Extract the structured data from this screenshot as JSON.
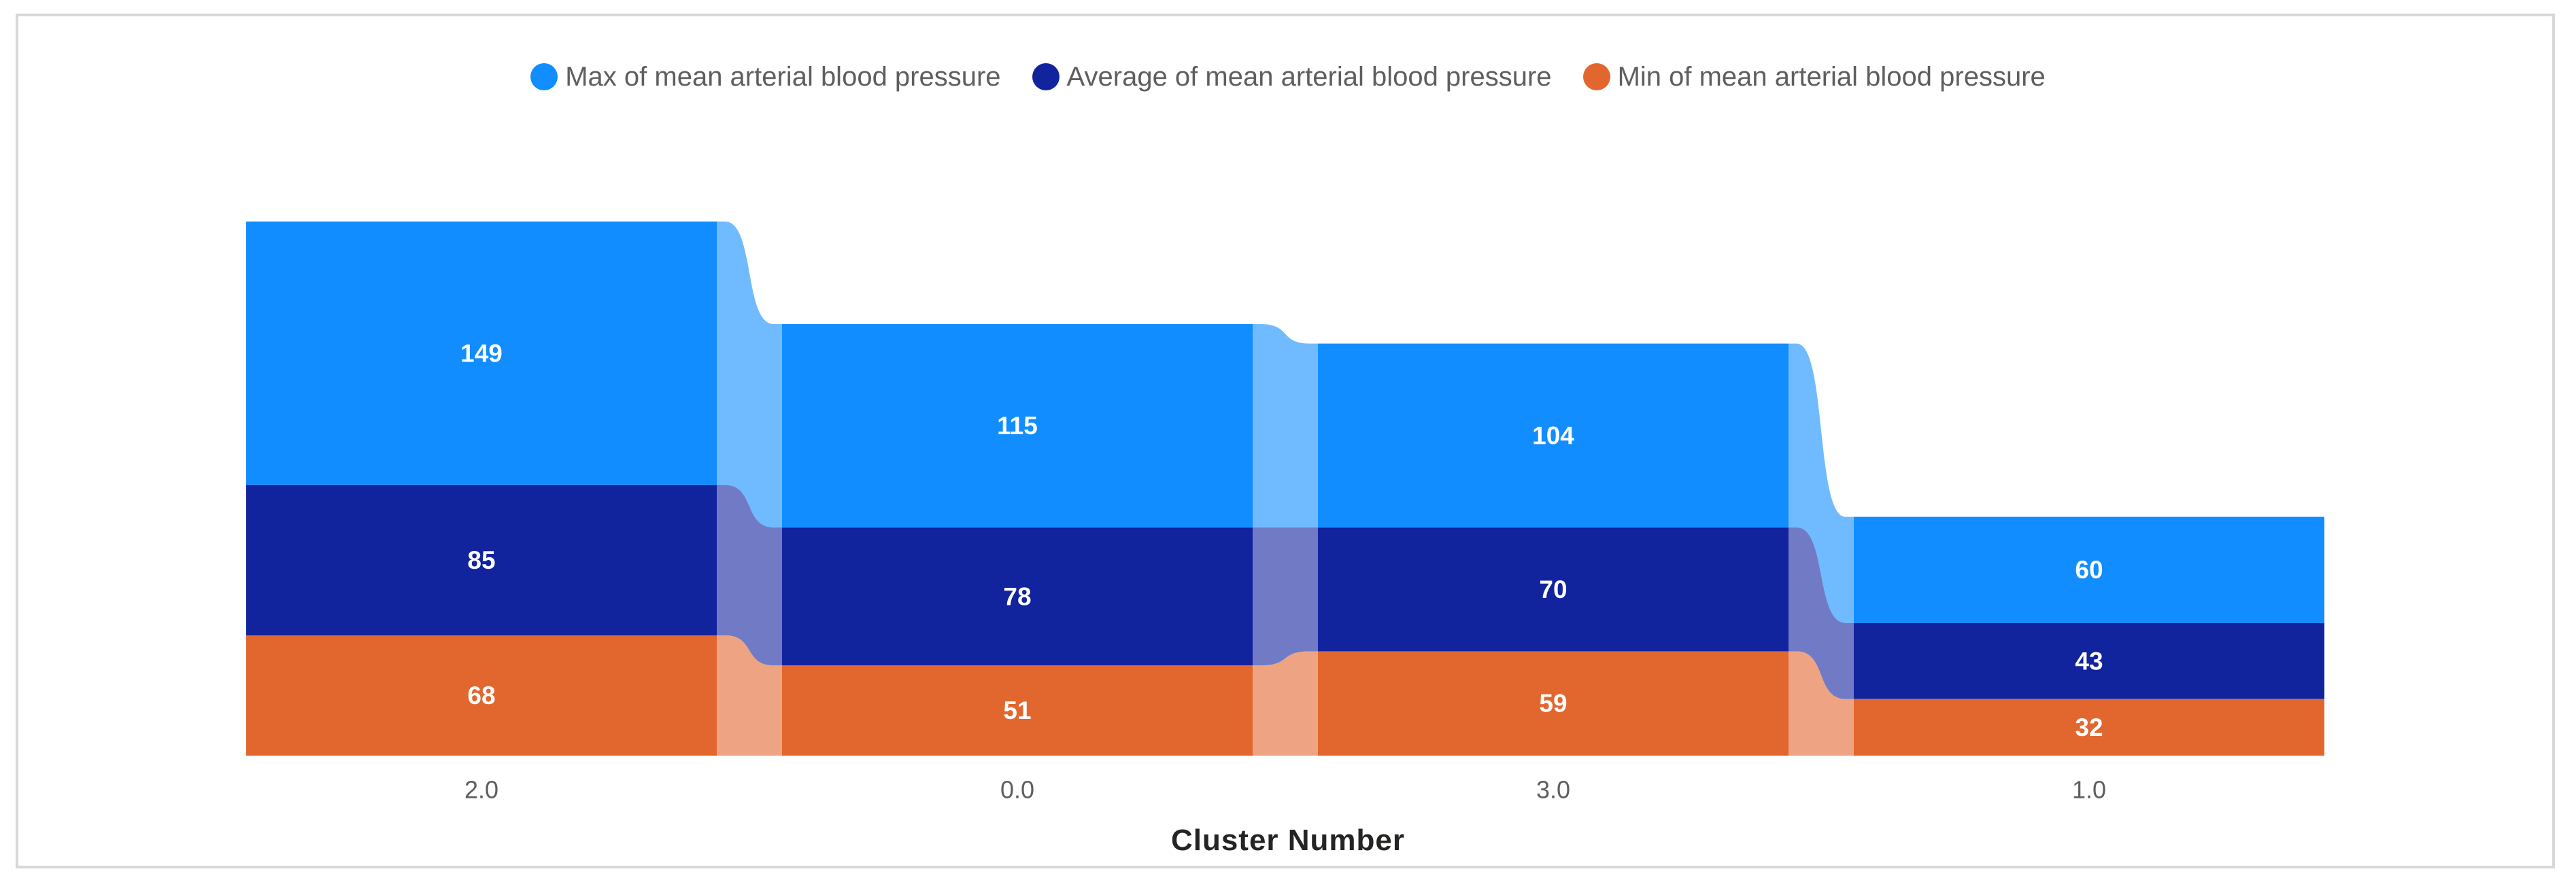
{
  "chart_data": {
    "type": "ribbon",
    "categories": [
      "2.0",
      "0.0",
      "3.0",
      "1.0"
    ],
    "series": [
      {
        "name": "Max of mean arterial blood pressure",
        "color": "#118DFF",
        "values": [
          149,
          115,
          104,
          60
        ]
      },
      {
        "name": "Average of mean arterial blood pressure",
        "color": "#12239E",
        "values": [
          85,
          78,
          70,
          43
        ]
      },
      {
        "name": "Min of mean arterial blood pressure",
        "color": "#E2672F",
        "values": [
          68,
          51,
          59,
          32
        ]
      }
    ],
    "xlabel": "Cluster Number",
    "ylabel": "",
    "data_labels": true,
    "label_color": "#FFFFFF",
    "legend_position": "top",
    "grid": false
  },
  "legend_text_color": "#605E5C",
  "axis": {
    "title": "Cluster Number",
    "title_color": "#252423",
    "tick_label_color": "#605E5C"
  },
  "frame": {
    "border_color": "#D8D8D8",
    "background": "#FFFFFF"
  }
}
